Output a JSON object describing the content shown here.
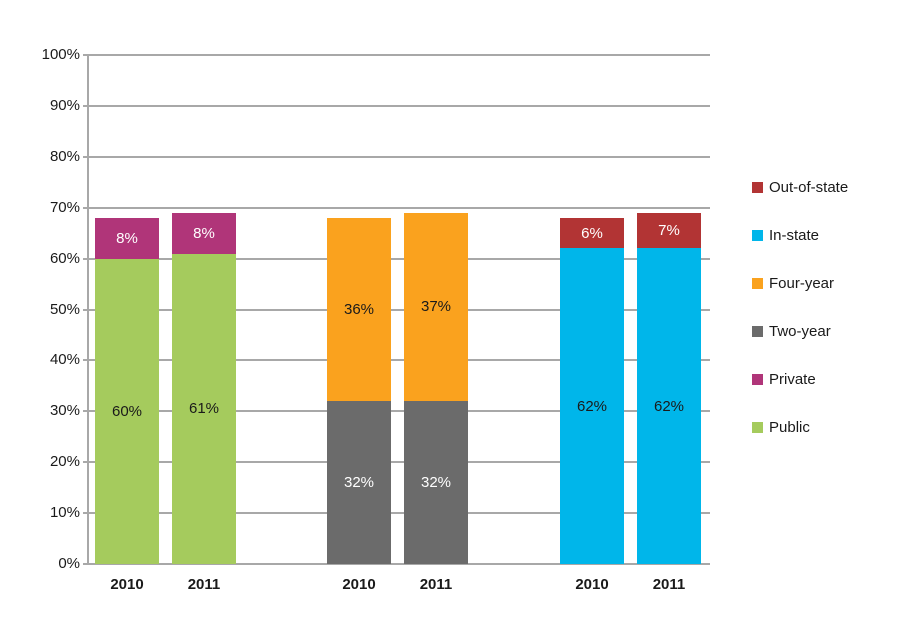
{
  "chart_data": {
    "type": "bar",
    "subtype": "stacked-grouped",
    "title": "",
    "xlabel": "",
    "ylabel": "",
    "y_axis": {
      "min": 0,
      "max": 100,
      "step": 10,
      "tick_labels": [
        "0%",
        "10%",
        "20%",
        "30%",
        "40%",
        "50%",
        "60%",
        "70%",
        "80%",
        "90%",
        "100%"
      ],
      "grid": true
    },
    "series_colors": {
      "Public": "#a5cb5d",
      "Private": "#b03579",
      "Two-year": "#6b6b6b",
      "Four-year": "#faa21e",
      "In-state": "#00b6ea",
      "Out-of-state": "#b23434"
    },
    "label_text_colors": {
      "Public": "#1a1a1a",
      "Private": "#ffffff",
      "Two-year": "#ffffff",
      "Four-year": "#1a1a1a",
      "In-state": "#1a1a1a",
      "Out-of-state": "#ffffff"
    },
    "groups": [
      {
        "bars": [
          {
            "x_label": "2010",
            "segments": [
              {
                "name": "Public",
                "value": 60,
                "label": "60%"
              },
              {
                "name": "Private",
                "value": 8,
                "label": "8%"
              }
            ]
          },
          {
            "x_label": "2011",
            "segments": [
              {
                "name": "Public",
                "value": 61,
                "label": "61%"
              },
              {
                "name": "Private",
                "value": 8,
                "label": "8%"
              }
            ]
          }
        ]
      },
      {
        "bars": [
          {
            "x_label": "2010",
            "segments": [
              {
                "name": "Two-year",
                "value": 32,
                "label": "32%"
              },
              {
                "name": "Four-year",
                "value": 36,
                "label": "36%"
              }
            ]
          },
          {
            "x_label": "2011",
            "segments": [
              {
                "name": "Two-year",
                "value": 32,
                "label": "32%"
              },
              {
                "name": "Four-year",
                "value": 37,
                "label": "37%"
              }
            ]
          }
        ]
      },
      {
        "bars": [
          {
            "x_label": "2010",
            "segments": [
              {
                "name": "In-state",
                "value": 62,
                "label": "62%"
              },
              {
                "name": "Out-of-state",
                "value": 6,
                "label": "6%"
              }
            ]
          },
          {
            "x_label": "2011",
            "segments": [
              {
                "name": "In-state",
                "value": 62,
                "label": "62%"
              },
              {
                "name": "Out-of-state",
                "value": 7,
                "label": "7%"
              }
            ]
          }
        ]
      }
    ],
    "legend": {
      "position": "right",
      "items": [
        {
          "label": "Out-of-state",
          "color": "#b23434"
        },
        {
          "label": "In-state",
          "color": "#00b6ea"
        },
        {
          "label": "Four-year",
          "color": "#faa21e"
        },
        {
          "label": "Two-year",
          "color": "#6b6b6b"
        },
        {
          "label": "Private",
          "color": "#b03579"
        },
        {
          "label": "Public",
          "color": "#a5cb5d"
        }
      ]
    }
  }
}
